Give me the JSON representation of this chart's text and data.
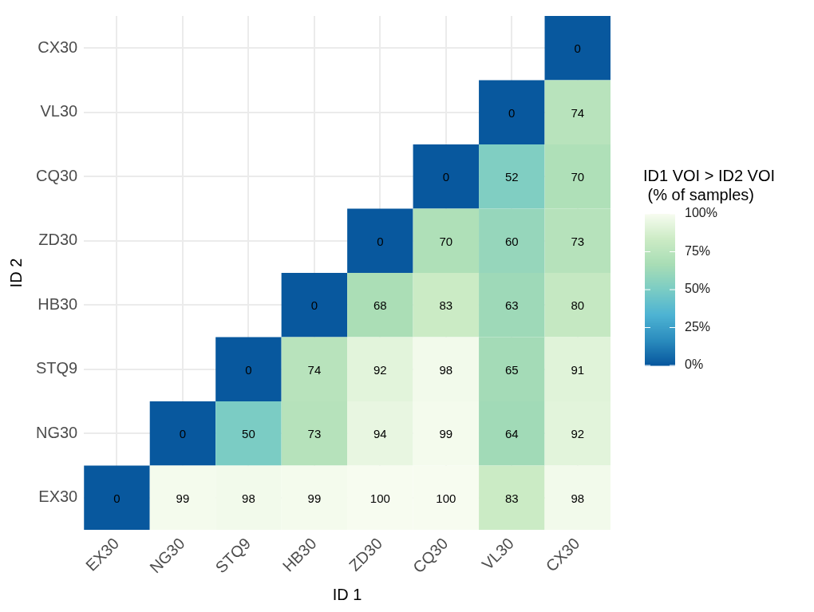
{
  "chart_data": {
    "type": "heatmap",
    "xlabel": "ID 1",
    "ylabel": "ID 2",
    "clabel": "ID1 VOI > ID2 VOI\n (% of samples)",
    "categories": [
      "EX30",
      "NG30",
      "STQ9",
      "HB30",
      "ZD30",
      "CQ30",
      "VL30",
      "CX30"
    ],
    "y_categories": [
      "CX30",
      "VL30",
      "CQ30",
      "ZD30",
      "HB30",
      "STQ9",
      "NG30",
      "EX30"
    ],
    "cells": [
      [
        null,
        null,
        null,
        null,
        null,
        null,
        null,
        0
      ],
      [
        null,
        null,
        null,
        null,
        null,
        null,
        0,
        74
      ],
      [
        null,
        null,
        null,
        null,
        null,
        0,
        52,
        70
      ],
      [
        null,
        null,
        null,
        null,
        0,
        70,
        60,
        73
      ],
      [
        null,
        null,
        null,
        0,
        68,
        83,
        63,
        80
      ],
      [
        null,
        null,
        0,
        74,
        92,
        98,
        65,
        91
      ],
      [
        null,
        0,
        50,
        73,
        94,
        99,
        64,
        92
      ],
      [
        0,
        99,
        98,
        99,
        100,
        100,
        83,
        98
      ]
    ],
    "colors": [
      "#08589e",
      "#2b8cbe",
      "#4eb3d3",
      "#7bccc4",
      "#a8ddb5",
      "#ccebc5",
      "#f7fcf0"
    ],
    "clim": [
      0,
      100
    ],
    "cticks": [
      {
        "value": 0,
        "label": "0%"
      },
      {
        "value": 25,
        "label": "25%"
      },
      {
        "value": 50,
        "label": "50%"
      },
      {
        "value": 75,
        "label": "75%"
      },
      {
        "value": 100,
        "label": "100%"
      }
    ],
    "data_labels": true,
    "grid": true,
    "legend": false
  }
}
